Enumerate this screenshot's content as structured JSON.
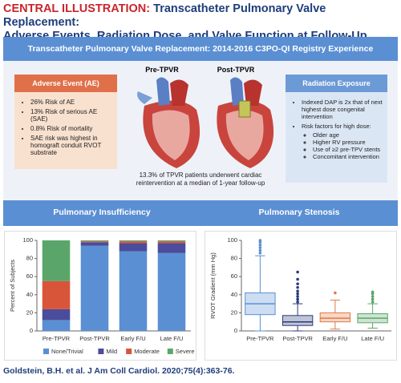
{
  "header": {
    "label": "CENTRAL ILLUSTRATION:",
    "title": [
      "Transcatheter Pulmonary Valve Replacement:",
      "Adverse Events, Radiation Dose, and Valve Function at Follow-Up"
    ]
  },
  "banner": "Transcatheter Pulmonary Valve Replacement: 2014-2016 C3PO-QI Registry Experience",
  "adverse_event": {
    "title": "Adverse Event (AE)",
    "items": [
      "26% Risk of AE",
      "13% Risk of serious AE (SAE)",
      "0.8% Risk of mortality",
      "SAE risk was highest in homograft conduit RVOT substrate"
    ]
  },
  "hearts": {
    "pre": "Pre-TPVR",
    "post": "Post-TPVR"
  },
  "caption": "13.3% of TPVR patients underwent cardiac reintervention at a median of 1-year follow-up",
  "radiation": {
    "title": "Radiation Exposure",
    "items": [
      {
        "text": "Indexed DAP is 2x that of next highest dose congenital intervention"
      },
      {
        "text": "Risk factors for high dose:",
        "subitems": [
          "Older age",
          "Higher RV pressure",
          "Use of ≥2 pre-TPV stents",
          "Concomitant intervention"
        ]
      }
    ]
  },
  "sections": [
    "Pulmonary Insufficiency",
    "Pulmonary Stenosis"
  ],
  "chart_data": [
    {
      "type": "stacked_bar",
      "y_label": "Percent of Subjects",
      "categories": [
        "Pre-TPVR",
        "Post-TPVR",
        "Early F/U",
        "Late F/U"
      ],
      "series": [
        {
          "name": "None/Trivial",
          "color": "#5b8fd3",
          "values": [
            12,
            94,
            88,
            86
          ]
        },
        {
          "name": "Mild",
          "color": "#4b4c9c",
          "values": [
            12,
            4,
            9,
            11
          ]
        },
        {
          "name": "Moderate",
          "color": "#d9553a",
          "values": [
            31,
            1,
            2,
            2
          ]
        },
        {
          "name": "Severe",
          "color": "#5aa66a",
          "values": [
            45,
            1,
            1,
            1
          ]
        }
      ],
      "ylim": [
        0,
        100
      ],
      "yticks": [
        0,
        20,
        40,
        60,
        80,
        100
      ]
    },
    {
      "type": "box",
      "y_label": "RVOT Gradient (mm Hg)",
      "categories": [
        "Pre-TPVR",
        "Post-TPVR",
        "Early F/U",
        "Late F/U"
      ],
      "boxes": [
        {
          "color": "#5b8fd3",
          "whisker_low": 0,
          "q1": 18,
          "median": 30,
          "q3": 42,
          "whisker_high": 83,
          "outliers": [
            86,
            89,
            92,
            95,
            98,
            100
          ]
        },
        {
          "color": "#2b3a7a",
          "whisker_low": 0,
          "q1": 6,
          "median": 10,
          "q3": 17,
          "whisker_high": 30,
          "outliers": [
            32,
            35,
            38,
            41,
            44,
            48,
            52,
            57,
            65
          ]
        },
        {
          "color": "#e07a45",
          "whisker_low": 2,
          "q1": 10,
          "median": 14,
          "q3": 20,
          "whisker_high": 34,
          "outliers": [
            42
          ]
        },
        {
          "color": "#5aa66a",
          "whisker_low": 3,
          "q1": 9,
          "median": 14,
          "q3": 19,
          "whisker_high": 30,
          "outliers": [
            32,
            35,
            38,
            41,
            43
          ]
        }
      ],
      "ylim": [
        0,
        100
      ],
      "yticks": [
        0,
        20,
        40,
        60,
        80,
        100
      ]
    }
  ],
  "citation": "Goldstein, B.H. et al. J Am Coll Cardiol. 2020;75(4):363-76."
}
